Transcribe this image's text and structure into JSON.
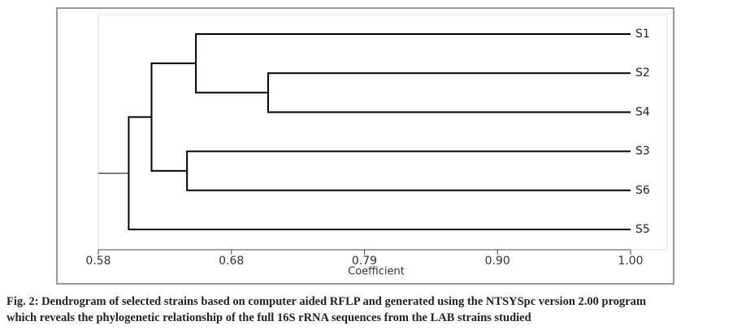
{
  "chart_data": {
    "type": "dendrogram",
    "x_label": "Coefficient",
    "leaves": [
      "S1",
      "S2",
      "S4",
      "S3",
      "S6",
      "S5"
    ],
    "merges": [
      {
        "children": [
          1,
          2
        ],
        "coefficient": 0.714
      },
      {
        "children": [
          3,
          4
        ],
        "coefficient": 0.65
      },
      {
        "children": [
          0,
          6
        ],
        "coefficient": 0.657
      },
      {
        "children": [
          8,
          7
        ],
        "coefficient": 0.622
      },
      {
        "children": [
          9,
          5
        ],
        "coefficient": 0.604
      }
    ],
    "xlim": [
      0.58,
      1.0
    ],
    "xticks": [
      0.58,
      {
        "value": 0.685,
        "label": "0.68"
      },
      0.79,
      {
        "value": 0.895,
        "label": "0.90"
      },
      {
        "value": 1.0,
        "label": "1.00"
      }
    ],
    "color": "#000000"
  },
  "caption": {
    "lines": [
      "Fig. 2: Dendrogram of selected strains based on computer aided RFLP and generated using the NTSYSpc version 2.00 program",
      "which reveals the phylogenetic relationship of the full 16S rRNA sequences from the LAB strains studied"
    ]
  }
}
